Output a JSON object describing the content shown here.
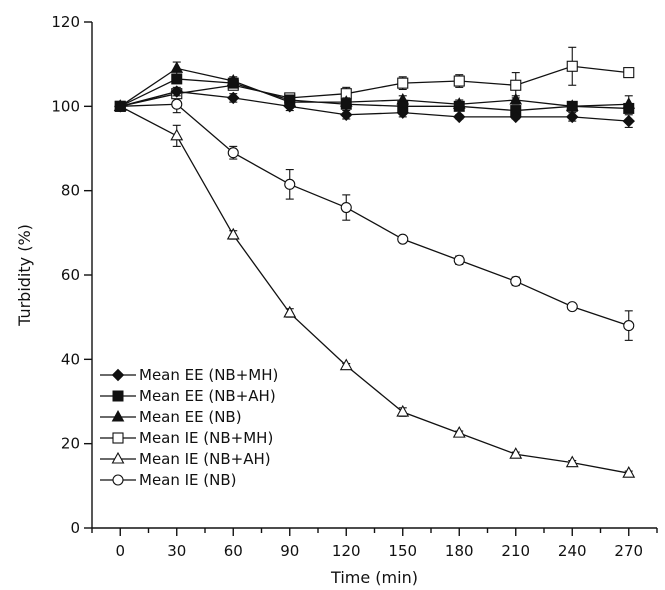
{
  "chart_data": {
    "type": "line",
    "title": "",
    "xlabel": "Time (min)",
    "ylabel": "Turbidity (%)",
    "xlim": [
      -15,
      285
    ],
    "ylim": [
      0,
      120
    ],
    "x": [
      0,
      30,
      60,
      90,
      120,
      150,
      180,
      210,
      240,
      270
    ],
    "x_tick_labels": [
      "0",
      "30",
      "60",
      "90",
      "120",
      "150",
      "180",
      "210",
      "240",
      "270"
    ],
    "y_ticks": [
      0,
      20,
      40,
      60,
      80,
      100,
      120
    ],
    "y_tick_labels": [
      "0",
      "20",
      "40",
      "60",
      "80",
      "100",
      "120"
    ],
    "grid": false,
    "legend_position": "bottom-left",
    "series": [
      {
        "name": "Mean EE (NB+MH)",
        "marker": "diamond-filled",
        "values": [
          100,
          103.5,
          102,
          100,
          98,
          98.5,
          97.5,
          97.5,
          97.5,
          96.5
        ],
        "errors": [
          0,
          1,
          1,
          1,
          1,
          1,
          0.5,
          0.5,
          1,
          1.5
        ]
      },
      {
        "name": "Mean EE (NB+AH)",
        "marker": "square-filled",
        "values": [
          100,
          106.5,
          105.5,
          101.5,
          100.5,
          100,
          100,
          99,
          100,
          99.5
        ],
        "errors": [
          0,
          1,
          1,
          1,
          1,
          1,
          1,
          0.5,
          1,
          1
        ]
      },
      {
        "name": "Mean EE (NB)",
        "marker": "triangle-filled",
        "values": [
          100,
          109,
          106,
          101,
          101,
          101.5,
          100.5,
          101.5,
          100,
          100.5
        ],
        "errors": [
          0,
          1.5,
          1,
          1,
          1,
          1,
          1,
          1,
          1,
          2
        ]
      },
      {
        "name": "Mean IE (NB+MH)",
        "marker": "square-open",
        "values": [
          100,
          103,
          105,
          102,
          103,
          105.5,
          106,
          105,
          109.5,
          108
        ],
        "errors": [
          0,
          1,
          1,
          1,
          1.5,
          1.5,
          1.5,
          3,
          4.5,
          1
        ]
      },
      {
        "name": "Mean IE (NB+AH)",
        "marker": "triangle-open",
        "values": [
          100,
          93,
          69.5,
          51,
          38.5,
          27.5,
          22.5,
          17.5,
          15.5,
          13
        ],
        "errors": [
          0,
          2.5,
          1,
          1,
          0.5,
          1,
          0.5,
          0.5,
          0.5,
          0.5
        ]
      },
      {
        "name": "Mean IE (NB)",
        "marker": "circle-open",
        "values": [
          100,
          100.5,
          89,
          81.5,
          76,
          68.5,
          63.5,
          58.5,
          52.5,
          48
        ],
        "errors": [
          0,
          2,
          1.5,
          3.5,
          3,
          0.5,
          1,
          1,
          0.5,
          3.5
        ]
      }
    ]
  }
}
